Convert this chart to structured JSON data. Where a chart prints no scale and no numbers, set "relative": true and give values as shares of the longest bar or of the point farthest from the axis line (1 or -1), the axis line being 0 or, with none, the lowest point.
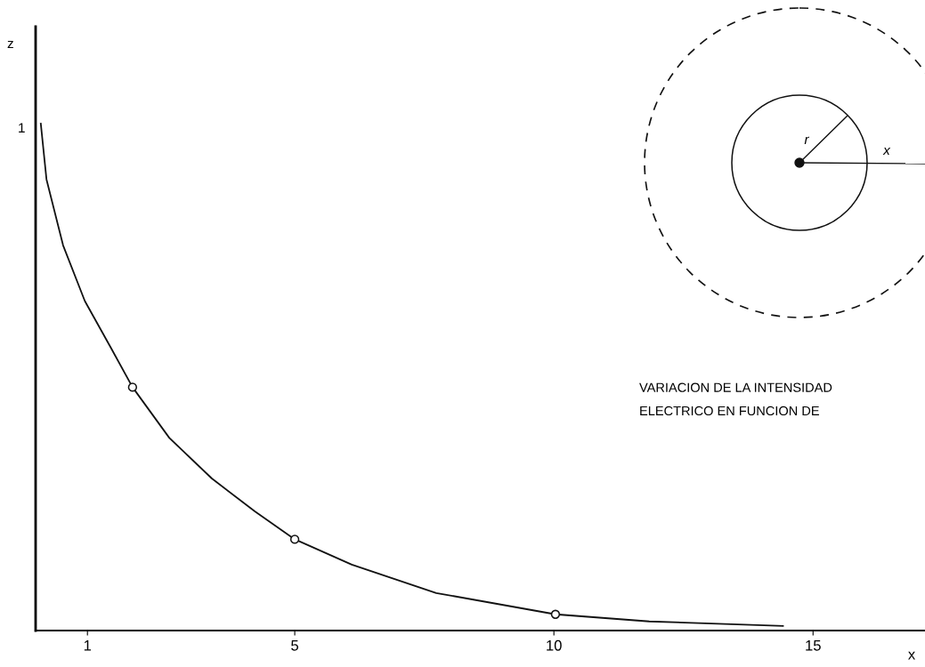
{
  "chart_data": {
    "type": "line",
    "relative": true,
    "xlabel": "x",
    "xlim": [
      0,
      17.16
    ],
    "xticks": [
      1,
      5,
      10,
      15
    ],
    "grid": false,
    "series": [
      {
        "color": "#111111",
        "marker": "none",
        "line_style": "solid",
        "x": [
          0.1,
          0.21,
          0.53,
          0.95,
          1.44,
          1.87,
          2.58,
          3.4,
          4.23,
          5.0,
          6.1,
          7.73,
          10.03,
          11.84,
          14.42
        ],
        "values": [
          1,
          0.89,
          0.76,
          0.65,
          0.56,
          0.48,
          0.38,
          0.3,
          0.235,
          0.18,
          0.13,
          0.074,
          0.032,
          0.018,
          0.009
        ]
      },
      {
        "type": "scatter",
        "color": "#111111",
        "marker": "circle",
        "x": [
          1.87,
          5.0,
          10.03
        ],
        "values": [
          0.48,
          0.18,
          0.032
        ]
      }
    ],
    "annotations": [
      "1",
      "VARIACION DE LA INTENSIDAD\nELECTRICO EN FUNCION DE",
      "r",
      "x",
      "z"
    ]
  }
}
